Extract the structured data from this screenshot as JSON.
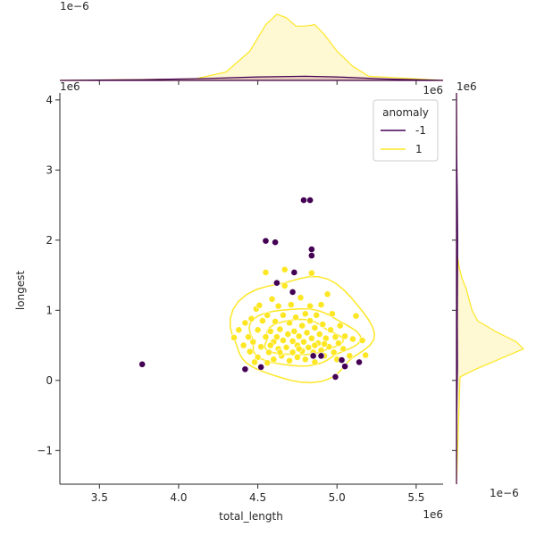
{
  "chart_data": {
    "type": "scatter",
    "xlabel": "total_length",
    "ylabel": "longest",
    "x_offset_label": "1e6",
    "y_offset_label": "1e6",
    "top_marginal_offset_label": "1e−6",
    "right_marginal_offset_label": "1e−6",
    "right_marginal_x_offset_label": "1e6",
    "xlim": [
      3.25,
      5.67
    ],
    "ylim": [
      -1.48,
      4.1
    ],
    "x_ticks": [
      3.5,
      4.0,
      4.5,
      5.0,
      5.5
    ],
    "x_tick_labels": [
      "3.5",
      "4.0",
      "4.5",
      "5.0",
      "5.5"
    ],
    "y_ticks": [
      -1,
      0,
      1,
      2,
      3,
      4
    ],
    "y_tick_labels": [
      "−1",
      "0",
      "1",
      "2",
      "3",
      "4"
    ],
    "grid": false,
    "legend": {
      "title": "anomaly",
      "placement": "top-right",
      "entries": [
        {
          "label": "-1",
          "color": "#440154"
        },
        {
          "label": "1",
          "color": "#fde725"
        }
      ]
    },
    "colors": {
      "anomaly": "#440154",
      "normal": "#fde725",
      "normal_fill": "#fdf5c4",
      "anomaly_fill": "#d8b8b2"
    },
    "series": [
      {
        "name": "-1",
        "color": "#440154",
        "points": [
          [
            3.77,
            0.23
          ],
          [
            4.42,
            0.16
          ],
          [
            4.52,
            0.19
          ],
          [
            4.55,
            1.99
          ],
          [
            4.61,
            1.97
          ],
          [
            4.62,
            1.39
          ],
          [
            4.72,
            1.26
          ],
          [
            4.73,
            1.54
          ],
          [
            4.79,
            2.57
          ],
          [
            4.83,
            2.57
          ],
          [
            4.84,
            1.87
          ],
          [
            4.84,
            1.78
          ],
          [
            4.85,
            0.35
          ],
          [
            4.9,
            0.35
          ],
          [
            4.99,
            0.05
          ],
          [
            5.03,
            0.29
          ],
          [
            5.05,
            0.2
          ],
          [
            5.14,
            0.26
          ]
        ]
      },
      {
        "name": "1",
        "color": "#fde725",
        "points": [
          [
            4.35,
            0.61
          ],
          [
            4.38,
            0.72
          ],
          [
            4.41,
            0.5
          ],
          [
            4.42,
            0.82
          ],
          [
            4.44,
            0.62
          ],
          [
            4.45,
            0.41
          ],
          [
            4.46,
            0.88
          ],
          [
            4.47,
            0.55
          ],
          [
            4.49,
            1.02
          ],
          [
            4.5,
            0.33
          ],
          [
            4.5,
            0.72
          ],
          [
            4.51,
            1.07
          ],
          [
            4.52,
            0.48
          ],
          [
            4.53,
            0.85
          ],
          [
            4.55,
            1.54
          ],
          [
            4.55,
            0.62
          ],
          [
            4.56,
            0.25
          ],
          [
            4.56,
            0.93
          ],
          [
            4.57,
            0.4
          ],
          [
            4.58,
            0.7
          ],
          [
            4.59,
            1.16
          ],
          [
            4.6,
            0.55
          ],
          [
            4.6,
            0.3
          ],
          [
            4.61,
            0.84
          ],
          [
            4.62,
            0.62
          ],
          [
            4.63,
            0.45
          ],
          [
            4.63,
            1.06
          ],
          [
            4.64,
            0.73
          ],
          [
            4.65,
            0.35
          ],
          [
            4.66,
            0.57
          ],
          [
            4.66,
            0.93
          ],
          [
            4.67,
            1.58
          ],
          [
            4.67,
            1.35
          ],
          [
            4.68,
            0.47
          ],
          [
            4.69,
            0.66
          ],
          [
            4.7,
            0.28
          ],
          [
            4.7,
            0.82
          ],
          [
            4.71,
            1.08
          ],
          [
            4.72,
            0.56
          ],
          [
            4.72,
            0.4
          ],
          [
            4.73,
            0.7
          ],
          [
            4.74,
            0.9
          ],
          [
            4.75,
            0.33
          ],
          [
            4.75,
            0.5
          ],
          [
            4.76,
            0.63
          ],
          [
            4.77,
            1.18
          ],
          [
            4.78,
            0.78
          ],
          [
            4.78,
            0.42
          ],
          [
            4.79,
            0.55
          ],
          [
            4.8,
            0.95
          ],
          [
            4.8,
            0.3
          ],
          [
            4.81,
            0.68
          ],
          [
            4.82,
            0.47
          ],
          [
            4.83,
            0.85
          ],
          [
            4.83,
            1.06
          ],
          [
            4.84,
            0.6
          ],
          [
            4.84,
            1.53
          ],
          [
            4.85,
            0.4
          ],
          [
            4.86,
            0.75
          ],
          [
            4.86,
            0.26
          ],
          [
            4.87,
            0.93
          ],
          [
            4.88,
            0.53
          ],
          [
            4.89,
            0.66
          ],
          [
            4.9,
            0.43
          ],
          [
            4.9,
            1.08
          ],
          [
            4.91,
            0.8
          ],
          [
            4.92,
            0.35
          ],
          [
            4.93,
            0.6
          ],
          [
            4.94,
            1.23
          ],
          [
            4.95,
            0.48
          ],
          [
            4.96,
            0.72
          ],
          [
            4.97,
            0.95
          ],
          [
            4.98,
            0.4
          ],
          [
            4.99,
            0.62
          ],
          [
            5.0,
            0.3
          ],
          [
            5.01,
            0.53
          ],
          [
            5.02,
            0.78
          ],
          [
            5.04,
            0.45
          ],
          [
            5.05,
            0.63
          ],
          [
            5.08,
            0.35
          ],
          [
            5.1,
            0.59
          ],
          [
            5.12,
            0.92
          ],
          [
            5.16,
            0.57
          ],
          [
            5.18,
            0.36
          ],
          [
            4.48,
            0.26
          ],
          [
            4.58,
            0.5
          ],
          [
            4.64,
            0.4
          ],
          [
            4.76,
            0.45
          ],
          [
            4.86,
            0.5
          ],
          [
            4.92,
            0.52
          ]
        ]
      }
    ],
    "top_marginal": {
      "type": "kde",
      "series": [
        {
          "name": "1",
          "x": [
            3.25,
            4.1,
            4.3,
            4.45,
            4.55,
            4.62,
            4.68,
            4.74,
            4.8,
            4.86,
            4.92,
            5.0,
            5.1,
            5.2,
            5.67
          ],
          "density": [
            0.0,
            0.02,
            0.12,
            0.42,
            0.8,
            0.95,
            0.9,
            0.78,
            0.78,
            0.8,
            0.66,
            0.42,
            0.2,
            0.06,
            0.0
          ]
        },
        {
          "name": "-1",
          "x": [
            3.25,
            3.77,
            4.2,
            4.5,
            4.8,
            5.0,
            5.3,
            5.67
          ],
          "density": [
            0.0,
            0.01,
            0.03,
            0.05,
            0.06,
            0.05,
            0.02,
            0.0
          ]
        }
      ]
    },
    "right_marginal": {
      "type": "kde",
      "series": [
        {
          "name": "1",
          "y": [
            -1.48,
            0.05,
            0.15,
            0.3,
            0.45,
            0.55,
            0.7,
            0.85,
            1.0,
            1.15,
            1.3,
            1.45,
            1.6,
            1.8,
            4.1
          ],
          "density": [
            0.0,
            0.05,
            0.25,
            0.6,
            0.95,
            0.85,
            0.55,
            0.3,
            0.22,
            0.18,
            0.14,
            0.08,
            0.04,
            0.01,
            0.0
          ]
        },
        {
          "name": "-1",
          "y": [
            -1.48,
            -0.5,
            0.2,
            0.8,
            1.4,
            2.0,
            2.6,
            3.2,
            4.1
          ],
          "density": [
            0.0,
            0.004,
            0.014,
            0.012,
            0.014,
            0.016,
            0.012,
            0.004,
            0.0
          ]
        }
      ]
    }
  }
}
